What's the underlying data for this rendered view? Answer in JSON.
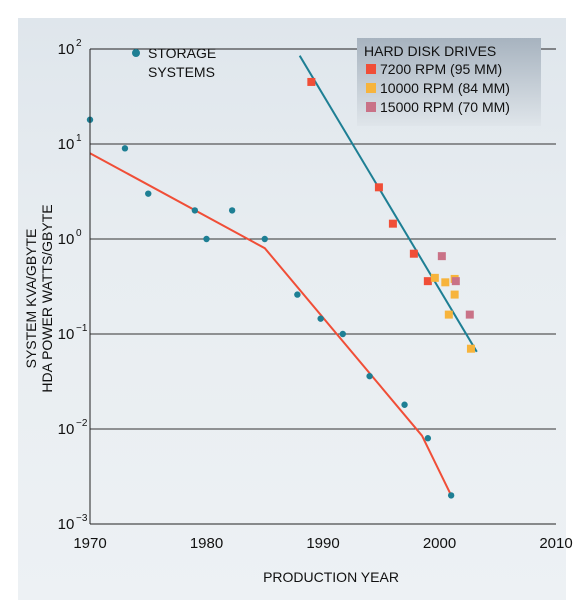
{
  "chart_data": {
    "type": "scatter",
    "xlabel": "PRODUCTION YEAR",
    "ylabel": [
      "SYSTEM KVA/GBYTE",
      "HDA POWER WATTS/GBYTE"
    ],
    "xlim": [
      1970,
      2010
    ],
    "ylim": [
      0.001,
      100
    ],
    "y_scale": "log",
    "x_ticks": [
      "1970",
      "1980",
      "1990",
      "2000",
      "2010"
    ],
    "y_ticks": [
      {
        "base": "10",
        "exp": "2",
        "value": 100
      },
      {
        "base": "10",
        "exp": "1",
        "value": 10
      },
      {
        "base": "10",
        "exp": "0",
        "value": 1
      },
      {
        "base": "10",
        "exp": "−1",
        "value": 0.1
      },
      {
        "base": "10",
        "exp": "−2",
        "value": 0.01
      },
      {
        "base": "10",
        "exp": "−3",
        "value": 0.001
      }
    ],
    "grid": "horizontal",
    "legends": {
      "storage": {
        "label_line1": "STORAGE",
        "label_line2": "SYSTEMS"
      },
      "hdd": {
        "title": "HARD DISK DRIVES"
      }
    },
    "series": [
      {
        "name": "STORAGE SYSTEMS",
        "marker": "circle",
        "color": "#1e7f94",
        "points": [
          [
            1970,
            18
          ],
          [
            1973,
            9
          ],
          [
            1975,
            3
          ],
          [
            1979,
            2
          ],
          [
            1980,
            1
          ],
          [
            1982.2,
            2
          ],
          [
            1985,
            1
          ],
          [
            1987.8,
            0.26
          ],
          [
            1989.8,
            0.145
          ],
          [
            1991.7,
            0.1
          ],
          [
            1994,
            0.036
          ],
          [
            1997,
            0.018
          ],
          [
            1999,
            0.008
          ],
          [
            2001,
            0.002
          ]
        ]
      },
      {
        "name": "7200 RPM (95 MM)",
        "marker": "square",
        "color": "#f04e37",
        "points": [
          [
            1989,
            45
          ],
          [
            1994.8,
            3.5
          ],
          [
            1996,
            1.45
          ],
          [
            1997.8,
            0.7
          ],
          [
            1999,
            0.36
          ]
        ]
      },
      {
        "name": "10000 RPM (84 MM)",
        "marker": "square",
        "color": "#f7b43c",
        "points": [
          [
            1999.6,
            0.39
          ],
          [
            2000.5,
            0.35
          ],
          [
            2000.8,
            0.16
          ],
          [
            2001.3,
            0.26
          ],
          [
            2001.3,
            0.38
          ],
          [
            2002.7,
            0.07
          ]
        ]
      },
      {
        "name": "15000 RPM (70 MM)",
        "marker": "square",
        "color": "#c97287",
        "points": [
          [
            2000.2,
            0.66
          ],
          [
            2001.4,
            0.36
          ],
          [
            2002.6,
            0.16
          ]
        ]
      }
    ],
    "trend_lines": [
      {
        "color": "#f04e37",
        "points": [
          [
            1970,
            8
          ],
          [
            1985,
            0.8
          ],
          [
            1998.5,
            0.0085
          ],
          [
            2001,
            0.002
          ]
        ]
      },
      {
        "color": "#1e7f94",
        "points": [
          [
            1988,
            85
          ],
          [
            2003.2,
            0.065
          ]
        ]
      }
    ]
  }
}
